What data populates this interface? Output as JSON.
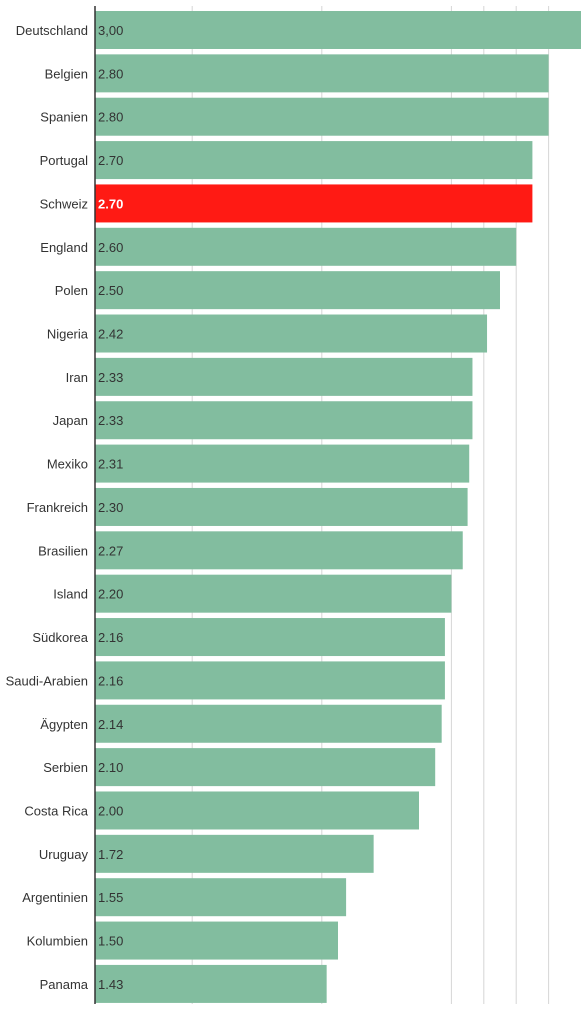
{
  "chart_data": {
    "type": "bar",
    "orientation": "horizontal",
    "categories": [
      "Deutschland",
      "Belgien",
      "Spanien",
      "Portugal",
      "Schweiz",
      "England",
      "Polen",
      "Nigeria",
      "Iran",
      "Japan",
      "Mexiko",
      "Frankreich",
      "Brasilien",
      "Island",
      "Südkorea",
      "Saudi-Arabien",
      "Ägypten",
      "Serbien",
      "Costa Rica",
      "Uruguay",
      "Argentinien",
      "Kolumbien",
      "Panama"
    ],
    "values": [
      3.0,
      2.8,
      2.8,
      2.7,
      2.7,
      2.6,
      2.5,
      2.42,
      2.33,
      2.33,
      2.31,
      2.3,
      2.27,
      2.2,
      2.16,
      2.16,
      2.14,
      2.1,
      2.0,
      1.72,
      1.55,
      1.5,
      1.43
    ],
    "value_labels": [
      "3,00",
      "2.80",
      "2.80",
      "2.70",
      "2.70",
      "2.60",
      "2.50",
      "2.42",
      "2.33",
      "2.33",
      "2.31",
      "2.30",
      "2.27",
      "2.20",
      "2.16",
      "2.16",
      "2.14",
      "2.10",
      "2.00",
      "1.72",
      "1.55",
      "1.50",
      "1.43"
    ],
    "highlight": "Schweiz",
    "title": "",
    "xlabel": "",
    "ylabel": "",
    "xlim": [
      0,
      3.0
    ],
    "gridlines": [
      0.6,
      1.4,
      2.2,
      2.4,
      2.6,
      2.8
    ],
    "grid": true,
    "legend": "none",
    "colors": {
      "bar": "#82bd9f",
      "highlight": "#ff1a14",
      "grid": "#d6d6d6",
      "axis": "#333333",
      "label": "#333333",
      "highlight_label": "#ffffff"
    }
  }
}
